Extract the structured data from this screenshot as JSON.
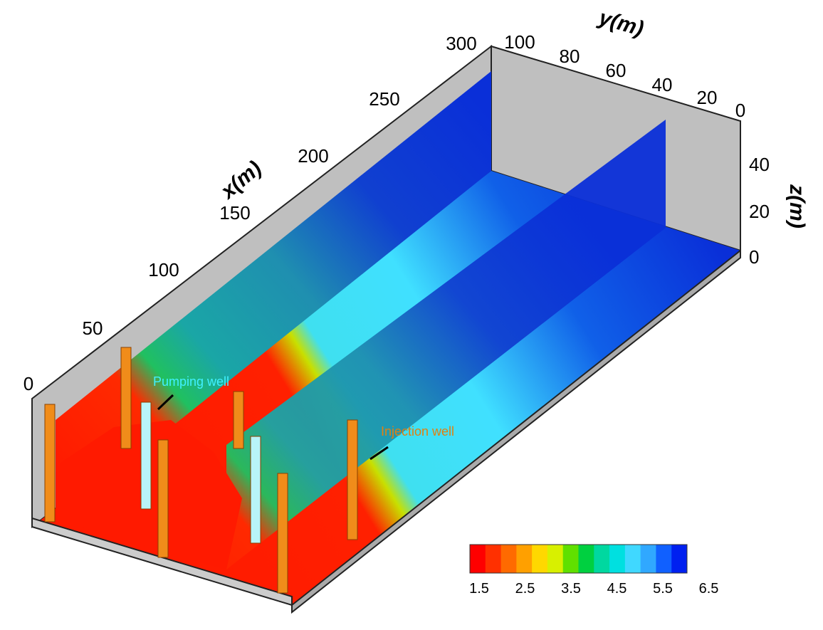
{
  "axes": {
    "x": {
      "label": "x(m)",
      "ticks": [
        "0",
        "50",
        "100",
        "150",
        "200",
        "250",
        "300"
      ]
    },
    "y": {
      "label": "y(m)",
      "ticks": [
        "100",
        "80",
        "60",
        "40",
        "20",
        "0"
      ]
    },
    "z": {
      "label": "z(m)",
      "ticks": [
        "0",
        "20",
        "40"
      ]
    }
  },
  "annotations": {
    "pumping_well": "Pumping well",
    "injection_well": "Injection well"
  },
  "colorbar": {
    "labels": [
      "1.5",
      "2.5",
      "3.5",
      "4.5",
      "5.5",
      "6.5"
    ]
  }
}
